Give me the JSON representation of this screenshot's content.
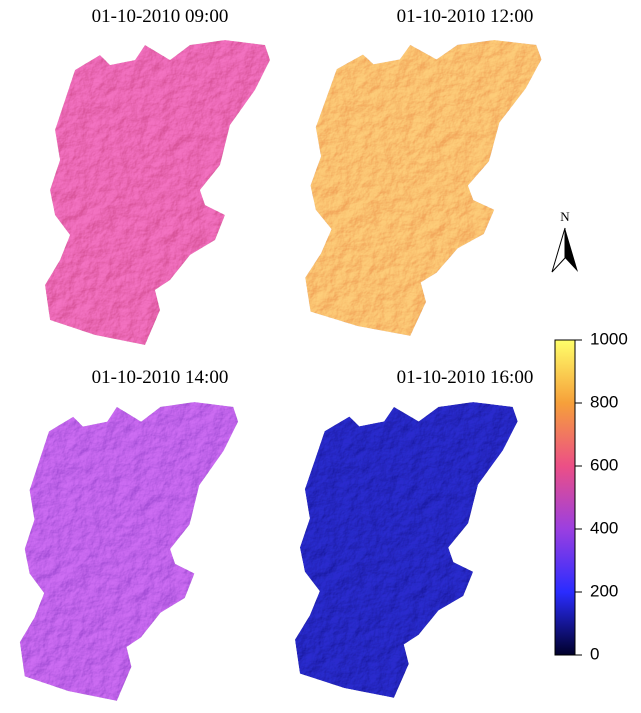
{
  "panels": [
    {
      "title": "01-10-2010 09:00",
      "color": "#d9549a"
    },
    {
      "title": "01-10-2010 12:00",
      "color": "#f2a65a"
    },
    {
      "title": "01-10-2010 14:00",
      "color": "#a650d8"
    },
    {
      "title": "01-10-2010 16:00",
      "color": "#1c1fa8"
    }
  ],
  "north_label": "N",
  "colorbar": {
    "lim": [
      0,
      1000
    ],
    "ticks": [
      0,
      200,
      400,
      600,
      800,
      1000
    ],
    "colors": [
      "#00002a",
      "#2a2cff",
      "#9b3fe0",
      "#ec4f86",
      "#f6a03a",
      "#ffff6a"
    ]
  }
}
